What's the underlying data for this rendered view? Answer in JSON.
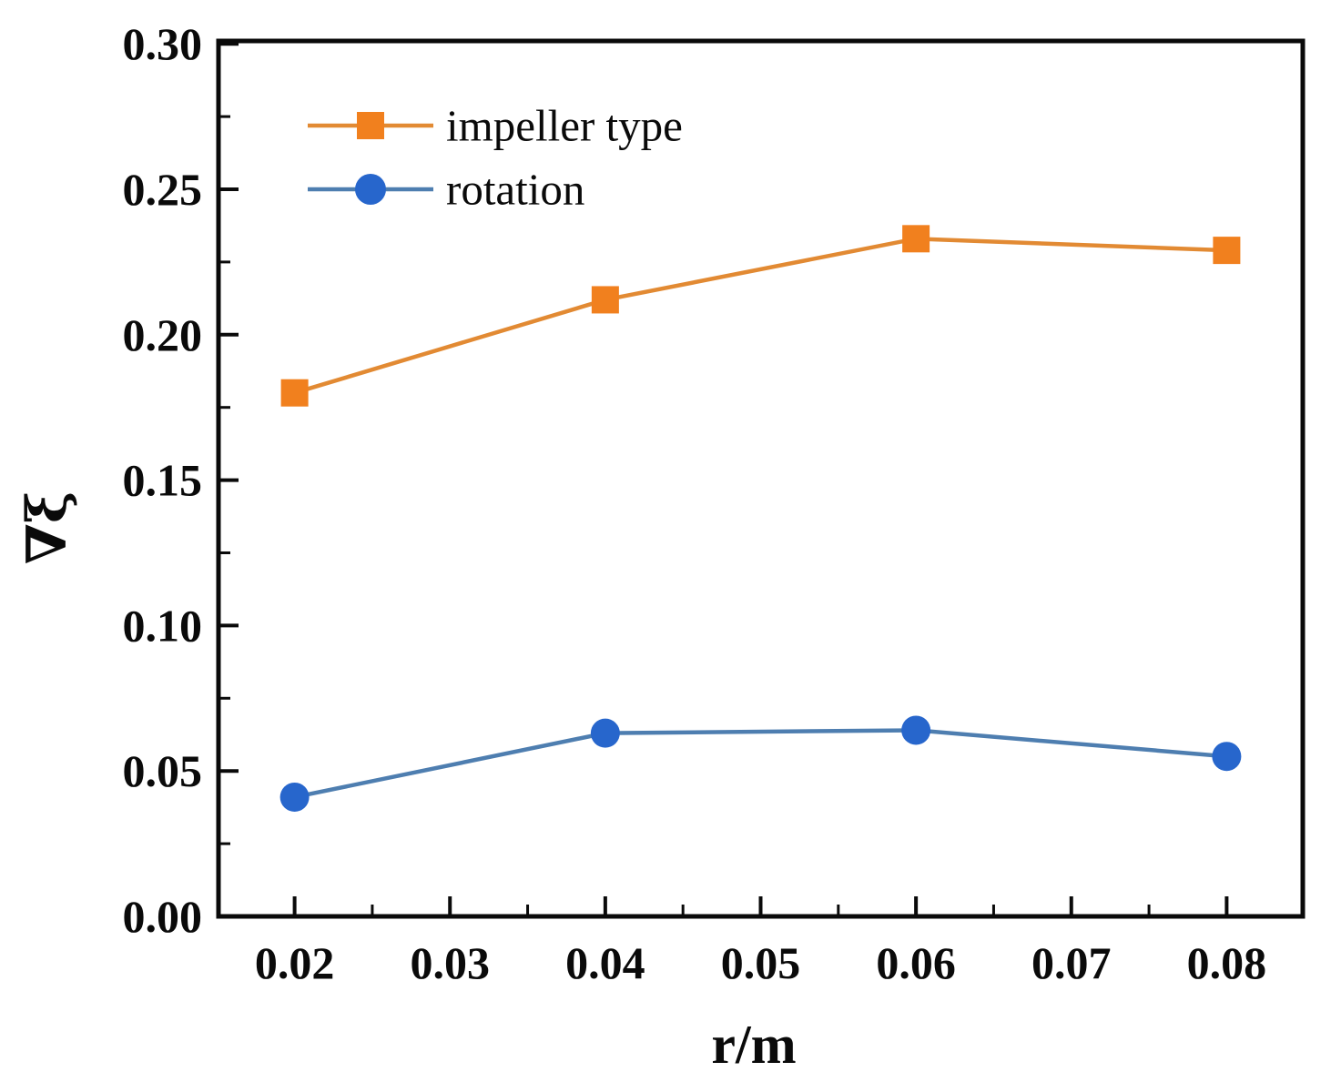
{
  "figure": {
    "background": "#FFFFFF"
  },
  "chart_data": {
    "type": "line",
    "title": "",
    "xlabel": "r/m",
    "ylabel": "∇ξ",
    "x": [
      0.02,
      0.04,
      0.06,
      0.08
    ],
    "series": [
      {
        "name": "impeller type",
        "marker": "square",
        "marker_color": "#F1801E",
        "line_color": "#E28A33",
        "values": [
          0.18,
          0.212,
          0.233,
          0.229
        ]
      },
      {
        "name": "rotation",
        "marker": "circle",
        "marker_color": "#2766CC",
        "line_color": "#4E7EB0",
        "values": [
          0.041,
          0.063,
          0.064,
          0.055
        ]
      }
    ],
    "x_ticks": {
      "values": [
        0.02,
        0.03,
        0.04,
        0.05,
        0.06,
        0.07,
        0.08
      ],
      "labels": [
        "0.02",
        "0.03",
        "0.04",
        "0.05",
        "0.06",
        "0.07",
        "0.08"
      ]
    },
    "y_ticks": {
      "values": [
        0.0,
        0.05,
        0.1,
        0.15,
        0.2,
        0.25,
        0.3
      ],
      "labels": [
        "0.00",
        "0.05",
        "0.10",
        "0.15",
        "0.20",
        "0.25",
        "0.30"
      ]
    },
    "xlim": [
      0.0151,
      0.0849
    ],
    "ylim": [
      0,
      0.301
    ],
    "grid": false,
    "legend_position": "upper-left-inside",
    "axis_color": "#0a0a0a"
  }
}
